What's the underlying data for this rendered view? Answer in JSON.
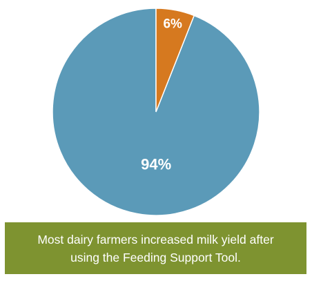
{
  "chart_data": {
    "type": "pie",
    "slices": [
      {
        "label": "94%",
        "value": 94,
        "color": "#5b9ab8"
      },
      {
        "label": "6%",
        "value": 6,
        "color": "#d6791f"
      }
    ],
    "start_angle_deg": 0,
    "direction": "counterclockwise",
    "legend": "none"
  },
  "caption": {
    "line1": "Most dairy farmers increased milk yield after",
    "line2": "using the Feeding Support Tool.",
    "background": "#7e9330"
  }
}
